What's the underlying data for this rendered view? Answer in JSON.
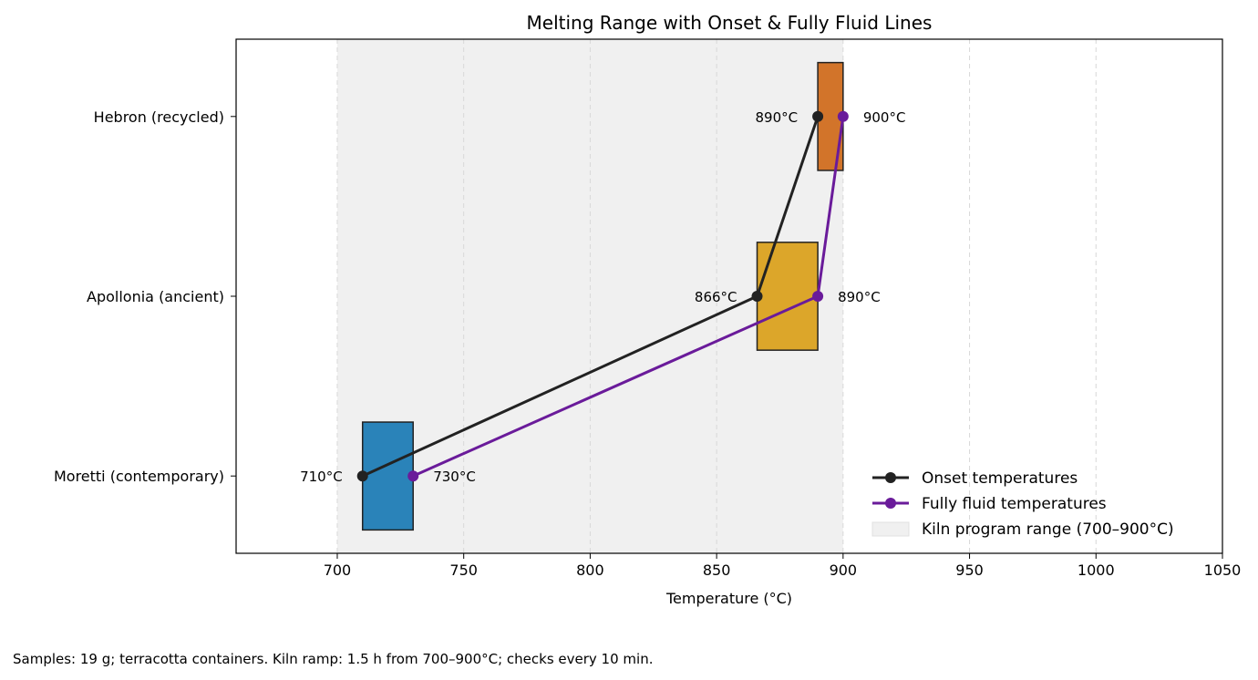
{
  "chart_data": {
    "type": "range-bar",
    "title": "Melting Range with Onset & Fully Fluid Lines",
    "xlabel": "Temperature (°C)",
    "ylabel": "",
    "xlim": [
      660,
      1050
    ],
    "xticks": [
      700,
      750,
      800,
      850,
      900,
      950,
      1000,
      1050
    ],
    "grid": "x-dashed",
    "categories": [
      "Moretti (contemporary)",
      "Apollonia (ancient)",
      "Hebron (recycled)"
    ],
    "onset": [
      710,
      866,
      890
    ],
    "fully_fluid": [
      730,
      890,
      900
    ],
    "onset_labels": [
      "710°C",
      "866°C",
      "890°C"
    ],
    "fluid_labels": [
      "730°C",
      "890°C",
      "900°C"
    ],
    "bar_colors": [
      "#2a83b9",
      "#dca62a",
      "#d2742a"
    ],
    "kiln_range": [
      700,
      900
    ],
    "series": [
      {
        "name": "Onset temperatures",
        "color": "#222222"
      },
      {
        "name": "Fully fluid temperatures",
        "color": "#6a1b9a"
      }
    ],
    "span_label": "Kiln program range (700–900°C)",
    "span_color": "#f0f0f0",
    "legend": "lower-right"
  },
  "footnote": "Samples: 19 g; terracotta containers. Kiln ramp: 1.5 h from 700–900°C; checks every 10 min."
}
